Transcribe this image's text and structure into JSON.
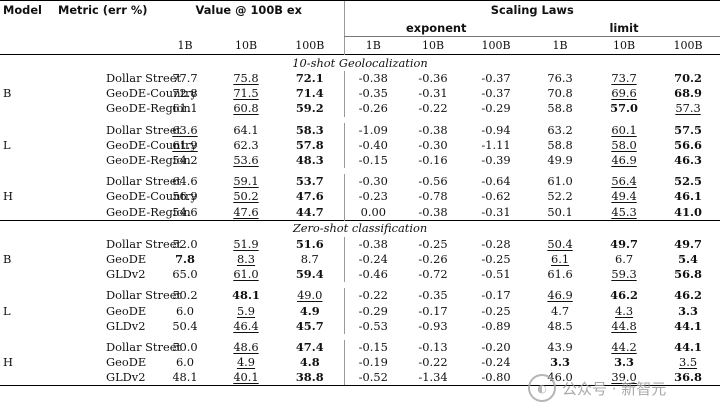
{
  "header": {
    "model": "Model",
    "metric": "Metric (err %)",
    "value_group": "Value @ 100B ex",
    "scaling_group": "Scaling Laws",
    "exponent": "exponent",
    "limit": "limit",
    "sizes": [
      "1B",
      "10B",
      "100B"
    ]
  },
  "sections": [
    {
      "title": "10-shot Geolocalization",
      "groups": [
        {
          "model": "B",
          "rows": [
            {
              "metric": "Dollar Street",
              "cells": [
                [
                  "77.7",
                  ""
                ],
                [
                  "75.8",
                  "u"
                ],
                [
                  "72.1",
                  "b"
                ],
                [
                  "-0.38",
                  ""
                ],
                [
                  "-0.36",
                  ""
                ],
                [
                  "-0.37",
                  ""
                ],
                [
                  "76.3",
                  ""
                ],
                [
                  "73.7",
                  "u"
                ],
                [
                  "70.2",
                  "b"
                ]
              ]
            },
            {
              "metric": "GeoDE-Country",
              "cells": [
                [
                  "72.8",
                  ""
                ],
                [
                  "71.5",
                  "u"
                ],
                [
                  "71.4",
                  "b"
                ],
                [
                  "-0.35",
                  ""
                ],
                [
                  "-0.31",
                  ""
                ],
                [
                  "-0.37",
                  ""
                ],
                [
                  "70.8",
                  ""
                ],
                [
                  "69.6",
                  "u"
                ],
                [
                  "68.9",
                  "b"
                ]
              ]
            },
            {
              "metric": "GeoDE-Region",
              "cells": [
                [
                  "61.1",
                  ""
                ],
                [
                  "60.8",
                  "u"
                ],
                [
                  "59.2",
                  "b"
                ],
                [
                  "-0.26",
                  ""
                ],
                [
                  "-0.22",
                  ""
                ],
                [
                  "-0.29",
                  ""
                ],
                [
                  "58.8",
                  ""
                ],
                [
                  "57.0",
                  "b"
                ],
                [
                  "57.3",
                  "u"
                ]
              ]
            }
          ]
        },
        {
          "model": "L",
          "rows": [
            {
              "metric": "Dollar Street",
              "cells": [
                [
                  "63.6",
                  "u"
                ],
                [
                  "64.1",
                  ""
                ],
                [
                  "58.3",
                  "b"
                ],
                [
                  "-1.09",
                  ""
                ],
                [
                  "-0.38",
                  ""
                ],
                [
                  "-0.94",
                  ""
                ],
                [
                  "63.2",
                  ""
                ],
                [
                  "60.1",
                  "u"
                ],
                [
                  "57.5",
                  "b"
                ]
              ]
            },
            {
              "metric": "GeoDE-Country",
              "cells": [
                [
                  "61.9",
                  "u"
                ],
                [
                  "62.3",
                  ""
                ],
                [
                  "57.8",
                  "b"
                ],
                [
                  "-0.40",
                  ""
                ],
                [
                  "-0.30",
                  ""
                ],
                [
                  "-1.11",
                  ""
                ],
                [
                  "58.8",
                  ""
                ],
                [
                  "58.0",
                  "u"
                ],
                [
                  "56.6",
                  "b"
                ]
              ]
            },
            {
              "metric": "GeoDE-Region",
              "cells": [
                [
                  "54.2",
                  ""
                ],
                [
                  "53.6",
                  "u"
                ],
                [
                  "48.3",
                  "b"
                ],
                [
                  "-0.15",
                  ""
                ],
                [
                  "-0.16",
                  ""
                ],
                [
                  "-0.39",
                  ""
                ],
                [
                  "49.9",
                  ""
                ],
                [
                  "46.9",
                  "u"
                ],
                [
                  "46.3",
                  "b"
                ]
              ]
            }
          ]
        },
        {
          "model": "H",
          "rows": [
            {
              "metric": "Dollar Street",
              "cells": [
                [
                  "64.6",
                  ""
                ],
                [
                  "59.1",
                  "u"
                ],
                [
                  "53.7",
                  "b"
                ],
                [
                  "-0.30",
                  ""
                ],
                [
                  "-0.56",
                  ""
                ],
                [
                  "-0.64",
                  ""
                ],
                [
                  "61.0",
                  ""
                ],
                [
                  "56.4",
                  "u"
                ],
                [
                  "52.5",
                  "b"
                ]
              ]
            },
            {
              "metric": "GeoDE-Country",
              "cells": [
                [
                  "56.9",
                  ""
                ],
                [
                  "50.2",
                  "u"
                ],
                [
                  "47.6",
                  "b"
                ],
                [
                  "-0.23",
                  ""
                ],
                [
                  "-0.78",
                  ""
                ],
                [
                  "-0.62",
                  ""
                ],
                [
                  "52.2",
                  ""
                ],
                [
                  "49.4",
                  "u"
                ],
                [
                  "46.1",
                  "b"
                ]
              ]
            },
            {
              "metric": "GeoDE-Region",
              "cells": [
                [
                  "54.6",
                  ""
                ],
                [
                  "47.6",
                  "u"
                ],
                [
                  "44.7",
                  "b"
                ],
                [
                  "0.00",
                  ""
                ],
                [
                  "-0.38",
                  ""
                ],
                [
                  "-0.31",
                  ""
                ],
                [
                  "50.1",
                  ""
                ],
                [
                  "45.3",
                  "u"
                ],
                [
                  "41.0",
                  "b"
                ]
              ]
            }
          ]
        }
      ]
    },
    {
      "title": "Zero-shot classification",
      "groups": [
        {
          "model": "B",
          "rows": [
            {
              "metric": "Dollar Street",
              "cells": [
                [
                  "52.0",
                  ""
                ],
                [
                  "51.9",
                  "u"
                ],
                [
                  "51.6",
                  "b"
                ],
                [
                  "-0.38",
                  ""
                ],
                [
                  "-0.25",
                  ""
                ],
                [
                  "-0.28",
                  ""
                ],
                [
                  "50.4",
                  "u"
                ],
                [
                  "49.7",
                  "b"
                ],
                [
                  "49.7",
                  "b"
                ]
              ]
            },
            {
              "metric": "GeoDE",
              "cells": [
                [
                  "7.8",
                  "b"
                ],
                [
                  "8.3",
                  "u"
                ],
                [
                  "8.7",
                  ""
                ],
                [
                  "-0.24",
                  ""
                ],
                [
                  "-0.26",
                  ""
                ],
                [
                  "-0.25",
                  ""
                ],
                [
                  "6.1",
                  "u"
                ],
                [
                  "6.7",
                  ""
                ],
                [
                  "5.4",
                  "b"
                ]
              ]
            },
            {
              "metric": "GLDv2",
              "cells": [
                [
                  "65.0",
                  ""
                ],
                [
                  "61.0",
                  "u"
                ],
                [
                  "59.4",
                  "b"
                ],
                [
                  "-0.46",
                  ""
                ],
                [
                  "-0.72",
                  ""
                ],
                [
                  "-0.51",
                  ""
                ],
                [
                  "61.6",
                  ""
                ],
                [
                  "59.3",
                  "u"
                ],
                [
                  "56.8",
                  "b"
                ]
              ]
            }
          ]
        },
        {
          "model": "L",
          "rows": [
            {
              "metric": "Dollar Street",
              "cells": [
                [
                  "50.2",
                  ""
                ],
                [
                  "48.1",
                  "b"
                ],
                [
                  "49.0",
                  "u"
                ],
                [
                  "-0.22",
                  ""
                ],
                [
                  "-0.35",
                  ""
                ],
                [
                  "-0.17",
                  ""
                ],
                [
                  "46.9",
                  "u"
                ],
                [
                  "46.2",
                  "b"
                ],
                [
                  "46.2",
                  "b"
                ]
              ]
            },
            {
              "metric": "GeoDE",
              "cells": [
                [
                  "6.0",
                  ""
                ],
                [
                  "5.9",
                  "u"
                ],
                [
                  "4.9",
                  "b"
                ],
                [
                  "-0.29",
                  ""
                ],
                [
                  "-0.17",
                  ""
                ],
                [
                  "-0.25",
                  ""
                ],
                [
                  "4.7",
                  ""
                ],
                [
                  "4.3",
                  "u"
                ],
                [
                  "3.3",
                  "b"
                ]
              ]
            },
            {
              "metric": "GLDv2",
              "cells": [
                [
                  "50.4",
                  ""
                ],
                [
                  "46.4",
                  "u"
                ],
                [
                  "45.7",
                  "b"
                ],
                [
                  "-0.53",
                  ""
                ],
                [
                  "-0.93",
                  ""
                ],
                [
                  "-0.89",
                  ""
                ],
                [
                  "48.5",
                  ""
                ],
                [
                  "44.8",
                  "u"
                ],
                [
                  "44.1",
                  "b"
                ]
              ]
            }
          ]
        },
        {
          "model": "H",
          "rows": [
            {
              "metric": "Dollar Street",
              "cells": [
                [
                  "50.0",
                  ""
                ],
                [
                  "48.6",
                  "u"
                ],
                [
                  "47.4",
                  "b"
                ],
                [
                  "-0.15",
                  ""
                ],
                [
                  "-0.13",
                  ""
                ],
                [
                  "-0.20",
                  ""
                ],
                [
                  "43.9",
                  ""
                ],
                [
                  "44.2",
                  "u"
                ],
                [
                  "44.1",
                  "b"
                ]
              ]
            },
            {
              "metric": "GeoDE",
              "cells": [
                [
                  "6.0",
                  ""
                ],
                [
                  "4.9",
                  "u"
                ],
                [
                  "4.8",
                  "b"
                ],
                [
                  "-0.19",
                  ""
                ],
                [
                  "-0.22",
                  ""
                ],
                [
                  "-0.24",
                  ""
                ],
                [
                  "3.3",
                  "b"
                ],
                [
                  "3.3",
                  "b"
                ],
                [
                  "3.5",
                  "u"
                ]
              ]
            },
            {
              "metric": "GLDv2",
              "cells": [
                [
                  "48.1",
                  ""
                ],
                [
                  "40.1",
                  "u"
                ],
                [
                  "38.8",
                  "b"
                ],
                [
                  "-0.52",
                  ""
                ],
                [
                  "-1.34",
                  ""
                ],
                [
                  "-0.80",
                  ""
                ],
                [
                  "46.0",
                  ""
                ],
                [
                  "39.0",
                  "u"
                ],
                [
                  "36.8",
                  "b"
                ]
              ]
            }
          ]
        }
      ]
    }
  ],
  "watermark": {
    "text": "公众号 · 新智元",
    "logo": "wechat-logo-icon"
  }
}
